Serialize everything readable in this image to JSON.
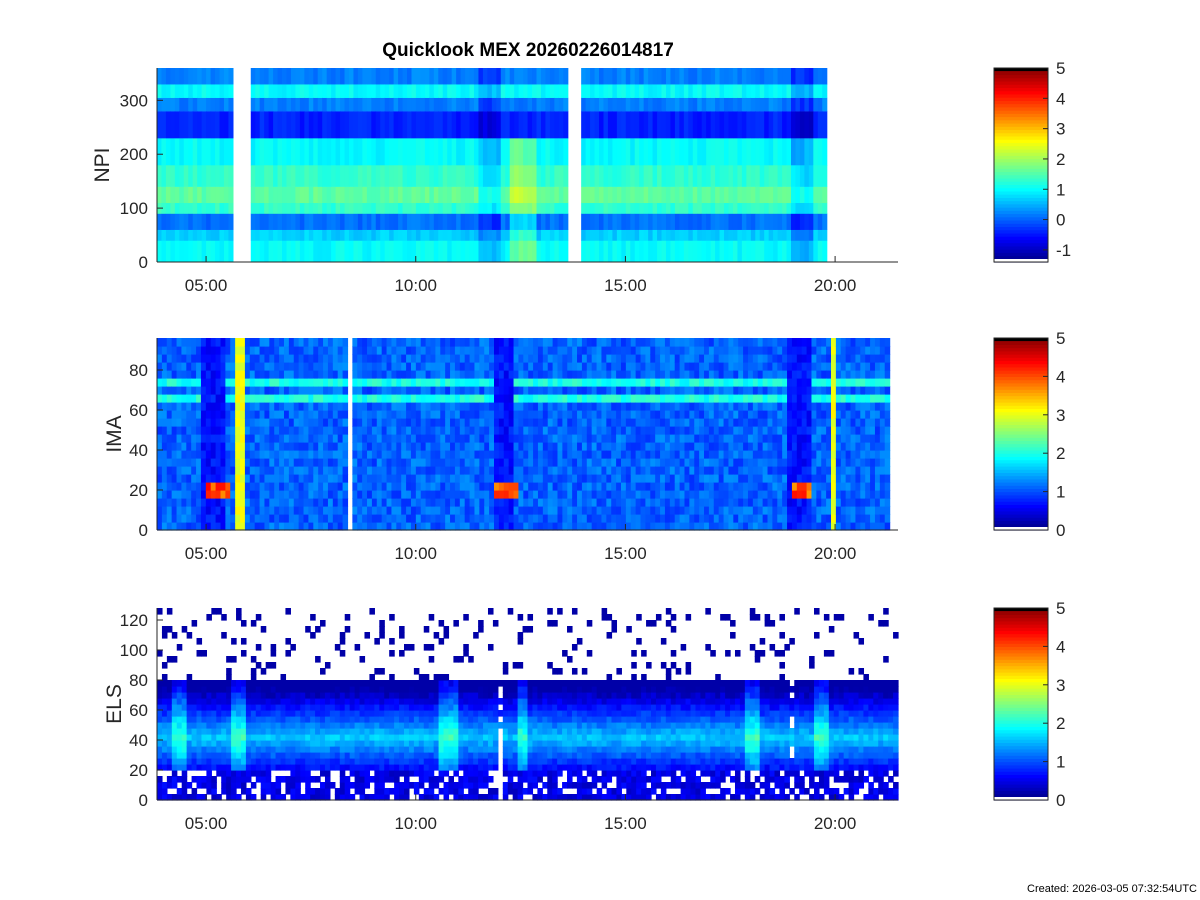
{
  "title": "Quicklook MEX 20260226014817",
  "footer": "Created: 2026-03-05 07:32:54UTC",
  "chart_data": [
    {
      "type": "heatmap",
      "ylabel": "NPI",
      "xlim": [
        3.83,
        21.5
      ],
      "ylim": [
        0,
        360
      ],
      "x_ticks": [
        5,
        10,
        15,
        20
      ],
      "x_tick_labels": [
        "05:00",
        "10:00",
        "15:00",
        "20:00"
      ],
      "y_ticks": [
        0,
        100,
        200,
        300
      ],
      "y_tick_labels": [
        "0",
        "100",
        "200",
        "300"
      ],
      "data_end": 19.8,
      "gaps": [
        [
          5.67,
          6.1
        ],
        [
          13.67,
          13.9
        ]
      ],
      "colorbar": {
        "min": -1.4,
        "max": 5,
        "ticks": [
          -1,
          0,
          1,
          2,
          3,
          4,
          5
        ],
        "tick_labels": [
          "-1",
          "0",
          "1",
          "2",
          "3",
          "4",
          "5"
        ]
      },
      "bands": [
        {
          "y": [
            0,
            40
          ],
          "value": 1.0
        },
        {
          "y": [
            40,
            60
          ],
          "value": 0.7
        },
        {
          "y": [
            60,
            90
          ],
          "value": 0.1
        },
        {
          "y": [
            90,
            110
          ],
          "value": 1.3
        },
        {
          "y": [
            110,
            140
          ],
          "value": 1.6
        },
        {
          "y": [
            140,
            180
          ],
          "value": 1.3
        },
        {
          "y": [
            180,
            230
          ],
          "value": 1.0
        },
        {
          "y": [
            230,
            280
          ],
          "value": -0.4
        },
        {
          "y": [
            280,
            305
          ],
          "value": 0.2
        },
        {
          "y": [
            305,
            330
          ],
          "value": 1.0
        },
        {
          "y": [
            330,
            360
          ],
          "value": 0.2
        }
      ]
    },
    {
      "type": "heatmap",
      "ylabel": "IMA",
      "xlim": [
        3.83,
        21.5
      ],
      "ylim": [
        0,
        96
      ],
      "x_ticks": [
        5,
        10,
        15,
        20
      ],
      "x_tick_labels": [
        "05:00",
        "10:00",
        "15:00",
        "20:00"
      ],
      "y_ticks": [
        0,
        20,
        40,
        60,
        80
      ],
      "y_tick_labels": [
        "0",
        "20",
        "40",
        "60",
        "80"
      ],
      "data_end": 21.3,
      "gaps": [
        [
          8.4,
          8.48
        ]
      ],
      "colorbar": {
        "min": 0,
        "max": 5,
        "ticks": [
          0,
          1,
          2,
          3,
          4,
          5
        ],
        "tick_labels": [
          "0",
          "1",
          "2",
          "3",
          "4",
          "5"
        ]
      },
      "background": 1.1,
      "dips": [
        [
          4.9,
          5.45
        ],
        [
          11.85,
          12.35
        ],
        [
          18.9,
          19.4
        ]
      ],
      "spikes": [
        [
          5.75,
          5.9
        ],
        [
          19.9,
          20.05
        ]
      ],
      "bursts": [
        {
          "x": [
            4.95,
            5.6
          ],
          "y": 20
        },
        {
          "x": [
            11.9,
            12.4
          ],
          "y": 21
        },
        {
          "x": [
            18.95,
            19.4
          ],
          "y": 20
        }
      ],
      "lines": [
        {
          "y": 66
        },
        {
          "y": 74
        }
      ]
    },
    {
      "type": "heatmap",
      "ylabel": "ELS",
      "xlim": [
        3.83,
        21.5
      ],
      "ylim": [
        0,
        128
      ],
      "x_ticks": [
        5,
        10,
        15,
        20
      ],
      "x_tick_labels": [
        "05:00",
        "10:00",
        "15:00",
        "20:00"
      ],
      "y_ticks": [
        0,
        20,
        40,
        60,
        80,
        100,
        120
      ],
      "y_tick_labels": [
        "0",
        "20",
        "40",
        "60",
        "80",
        "100",
        "120"
      ],
      "data_end": 21.5,
      "colorbar": {
        "min": 0,
        "max": 5,
        "ticks": [
          0,
          1,
          2,
          3,
          4,
          5
        ],
        "tick_labels": [
          "0",
          "1",
          "2",
          "3",
          "4",
          "5"
        ]
      },
      "core": {
        "y_center": 42,
        "value": 1.6
      },
      "bright": [
        [
          4.2,
          4.5
        ],
        [
          5.55,
          5.9
        ],
        [
          10.6,
          11.0
        ],
        [
          12.4,
          12.7
        ],
        [
          17.8,
          18.2
        ],
        [
          19.5,
          19.8
        ]
      ],
      "gaps": [
        [
          4.95,
          5.05
        ],
        [
          11.9,
          12.1
        ],
        [
          18.95,
          19.05
        ]
      ]
    }
  ]
}
